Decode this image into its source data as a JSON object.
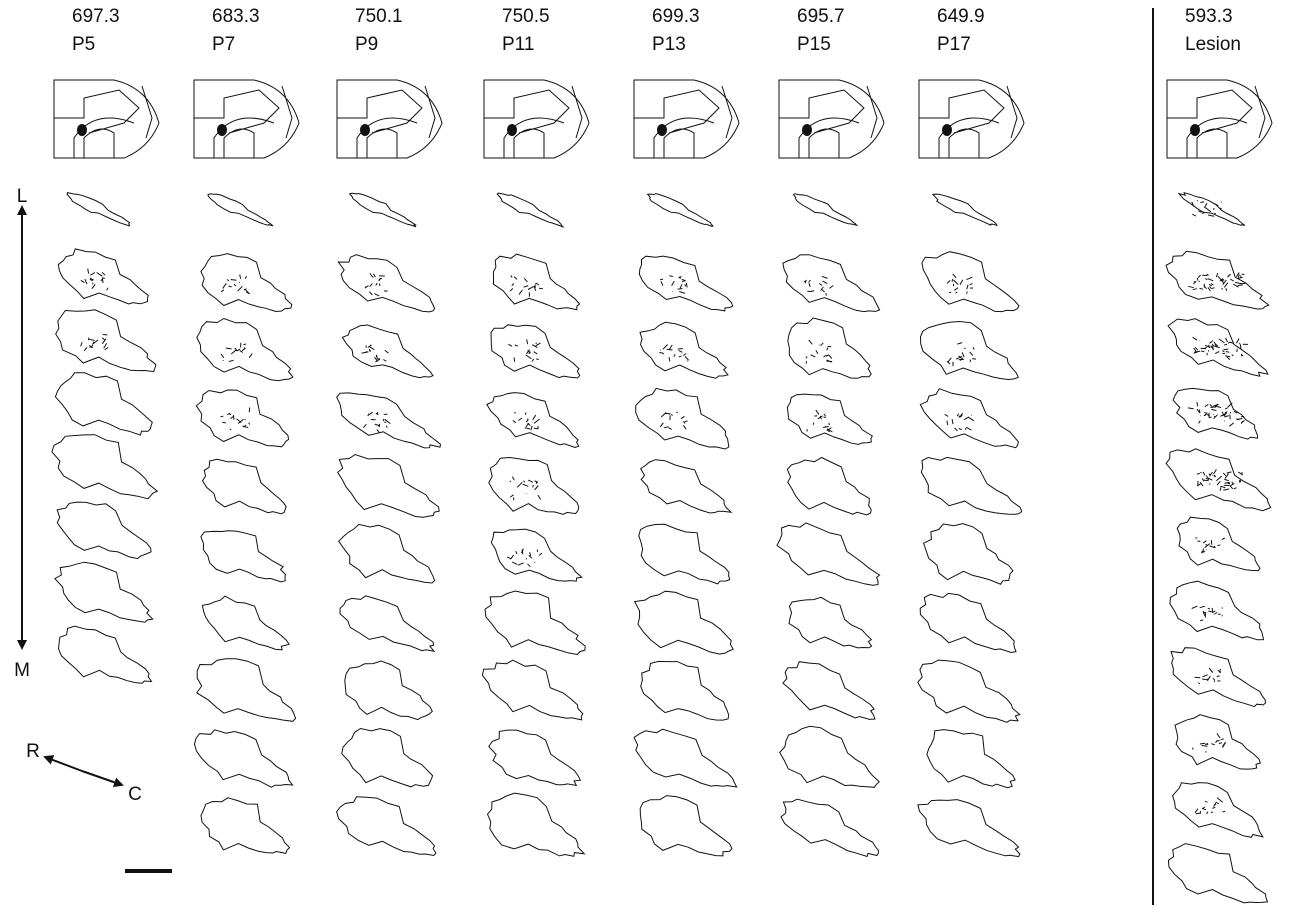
{
  "columns": [
    {
      "value": 697.3,
      "label": "P5"
    },
    {
      "value": 683.3,
      "label": "P7"
    },
    {
      "value": 750.1,
      "label": "P9"
    },
    {
      "value": 750.5,
      "label": "P11"
    },
    {
      "value": 699.3,
      "label": "P13"
    },
    {
      "value": 695.7,
      "label": "P15"
    },
    {
      "value": 649.9,
      "label": "P17"
    },
    {
      "value": 593.3,
      "label": "Lesion"
    }
  ],
  "axis_labels": {
    "lateral": "L",
    "medial": "M",
    "rostral": "R",
    "caudal": "C"
  }
}
